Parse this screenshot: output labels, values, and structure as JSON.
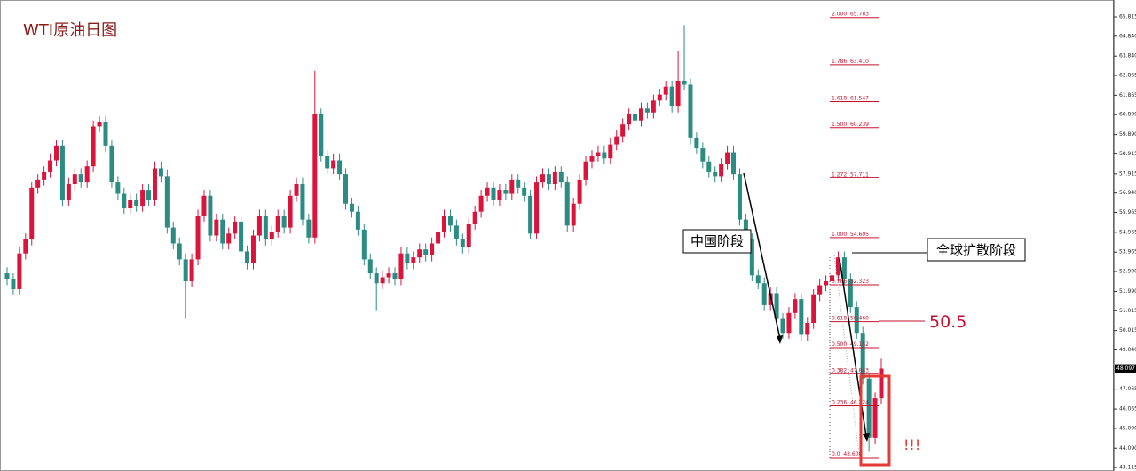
{
  "chart_data": {
    "type": "candlestick",
    "title": "WTI原油日图",
    "ylim": [
      42.94,
      66.664
    ],
    "yticks": [
      65.815,
      {
        "value": 64.84,
        "label": "64.840"
      },
      {
        "value": 63.84,
        "label": "63.840"
      },
      62.865,
      61.865,
      {
        "value": 60.89,
        "label": "60.890"
      },
      {
        "value": 59.89,
        "label": "59.890"
      },
      58.915,
      57.915,
      {
        "value": 56.94,
        "label": "56.940"
      },
      55.965,
      54.965,
      53.965,
      {
        "value": 52.99,
        "label": "52.990"
      },
      {
        "value": 51.99,
        "label": "51.990"
      },
      51.015,
      50.015,
      {
        "value": 49.04,
        "label": "49.040"
      },
      47.065,
      46.065,
      {
        "value": 45.09,
        "label": "45.090"
      },
      {
        "value": 44.09,
        "label": "44.090"
      },
      43.115
    ],
    "last_price": 48.097,
    "up_color": "#dc143c",
    "down_color": "#2a8c82",
    "open": [
      52.9,
      52.6,
      52.1,
      53.9,
      54.6,
      57.2,
      57.6,
      58.0,
      58.6,
      59.3,
      56.6,
      57.4,
      57.9,
      57.5,
      58.3,
      60.3,
      60.5,
      59.3,
      57.5,
      56.9,
      56.2,
      56.6,
      56.3,
      57.1,
      56.6,
      58.2,
      57.8,
      55.2,
      54.4,
      53.6,
      52.5,
      53.6,
      55.8,
      56.8,
      54.8,
      55.6,
      54.4,
      54.9,
      55.5,
      54.0,
      53.4,
      54.8,
      55.8,
      54.6,
      55.0,
      55.8,
      55.2,
      56.8,
      57.4,
      55.6,
      54.7,
      60.9,
      58.8,
      58.2,
      58.6,
      57.9,
      56.4,
      56.0,
      55.1,
      53.6,
      52.9,
      52.4,
      52.7,
      52.9,
      52.6,
      53.9,
      53.4,
      53.7,
      54.1,
      53.8,
      54.4,
      55.0,
      55.8,
      55.3,
      54.6,
      54.2,
      55.4,
      56.0,
      56.8,
      57.2,
      56.6,
      57.1,
      56.9,
      57.6,
      57.2,
      56.8,
      54.9,
      57.5,
      57.9,
      57.4,
      58.0,
      57.5,
      55.3,
      56.4,
      57.6,
      58.5,
      58.8,
      59.0,
      58.7,
      59.4,
      59.8,
      60.4,
      60.9,
      60.6,
      61.2,
      61.0,
      61.6,
      61.9,
      62.3,
      61.3,
      62.6,
      62.4,
      59.7,
      59.2,
      58.5,
      58.0,
      57.8,
      58.4,
      59.0,
      57.9,
      55.6,
      54.6,
      52.8,
      52.4,
      51.3,
      51.9,
      50.6,
      49.9,
      50.9,
      51.6,
      49.8,
      50.4,
      51.8,
      52.3,
      52.5,
      52.8,
      53.7,
      52.6,
      51.2,
      49.9,
      47.6,
      44.6,
      46.6
    ],
    "high": [
      53.2,
      52.9,
      54.2,
      54.9,
      57.5,
      57.9,
      58.3,
      58.9,
      59.6,
      59.6,
      57.7,
      58.2,
      58.2,
      58.6,
      60.6,
      60.8,
      60.8,
      59.6,
      57.8,
      57.2,
      56.9,
      56.9,
      57.4,
      57.4,
      58.5,
      58.5,
      58.1,
      55.5,
      54.7,
      53.9,
      53.9,
      56.1,
      57.1,
      57.1,
      55.9,
      55.9,
      55.2,
      55.8,
      55.8,
      54.3,
      55.1,
      56.1,
      56.1,
      55.3,
      56.1,
      56.1,
      57.1,
      57.7,
      57.7,
      55.9,
      63.1,
      61.2,
      59.1,
      58.9,
      58.9,
      58.2,
      56.7,
      56.3,
      55.4,
      53.9,
      53.2,
      53.0,
      53.2,
      53.2,
      54.2,
      54.2,
      54.0,
      54.4,
      54.4,
      54.7,
      55.3,
      56.1,
      56.1,
      55.6,
      54.9,
      55.7,
      56.3,
      57.1,
      57.5,
      57.5,
      57.4,
      57.4,
      57.9,
      57.9,
      57.5,
      57.1,
      57.8,
      58.2,
      58.2,
      58.3,
      58.3,
      57.8,
      56.7,
      57.9,
      58.8,
      59.1,
      59.3,
      59.3,
      59.7,
      60.1,
      60.7,
      61.2,
      61.2,
      61.5,
      61.5,
      61.9,
      62.2,
      62.6,
      62.6,
      64.1,
      65.4,
      62.7,
      60.0,
      59.5,
      58.8,
      58.3,
      58.7,
      59.3,
      59.3,
      58.2,
      55.9,
      54.9,
      53.1,
      52.7,
      52.2,
      52.2,
      50.9,
      51.2,
      51.9,
      51.9,
      50.7,
      52.1,
      52.6,
      52.8,
      53.1,
      54.0,
      54.0,
      52.9,
      51.5,
      50.2,
      47.9,
      46.9,
      48.6
    ],
    "low": [
      52.3,
      51.8,
      51.8,
      53.6,
      54.3,
      56.9,
      57.3,
      57.7,
      58.3,
      56.3,
      56.3,
      57.1,
      57.2,
      57.2,
      58.0,
      60.0,
      59.0,
      57.2,
      56.6,
      55.9,
      55.9,
      56.0,
      56.0,
      56.3,
      56.3,
      57.5,
      54.9,
      54.1,
      53.3,
      50.6,
      52.2,
      53.3,
      55.5,
      54.5,
      54.5,
      54.1,
      54.1,
      54.6,
      53.7,
      53.1,
      53.1,
      54.5,
      54.3,
      54.3,
      54.7,
      54.9,
      54.9,
      56.5,
      55.3,
      54.4,
      54.4,
      58.5,
      57.9,
      57.9,
      57.6,
      56.1,
      55.7,
      54.8,
      53.3,
      52.6,
      51.0,
      52.1,
      52.4,
      52.3,
      52.3,
      53.1,
      53.1,
      53.4,
      53.5,
      53.5,
      54.1,
      54.7,
      55.0,
      54.3,
      53.9,
      53.9,
      55.1,
      55.7,
      56.5,
      56.3,
      56.3,
      56.6,
      56.6,
      56.9,
      56.5,
      54.6,
      54.6,
      57.2,
      57.1,
      57.1,
      57.2,
      55.0,
      55.0,
      56.1,
      57.3,
      58.2,
      58.5,
      58.4,
      58.4,
      59.1,
      59.5,
      60.1,
      60.3,
      60.3,
      60.7,
      60.7,
      61.3,
      61.6,
      61.0,
      61.0,
      62.1,
      59.4,
      58.9,
      58.2,
      57.7,
      57.5,
      57.5,
      58.1,
      57.6,
      55.3,
      54.3,
      52.5,
      52.1,
      51.0,
      51.0,
      50.3,
      49.6,
      49.6,
      50.6,
      49.5,
      49.5,
      50.1,
      51.5,
      52.0,
      52.2,
      52.5,
      52.3,
      50.9,
      49.6,
      47.3,
      43.9,
      44.3,
      46.3
    ],
    "close": [
      52.6,
      52.1,
      53.9,
      54.6,
      57.2,
      57.6,
      58.0,
      58.6,
      59.3,
      56.6,
      57.4,
      57.9,
      57.5,
      58.3,
      60.3,
      60.5,
      59.3,
      57.5,
      56.9,
      56.2,
      56.6,
      56.3,
      57.1,
      56.6,
      58.2,
      57.8,
      55.2,
      54.4,
      53.6,
      52.5,
      53.6,
      55.8,
      56.8,
      54.8,
      55.6,
      54.4,
      54.9,
      55.5,
      54.0,
      53.4,
      54.8,
      55.8,
      54.6,
      55.0,
      55.8,
      55.2,
      56.8,
      57.4,
      55.6,
      54.7,
      60.9,
      58.8,
      58.2,
      58.6,
      57.9,
      56.4,
      56.0,
      55.1,
      53.6,
      52.9,
      52.4,
      52.7,
      52.9,
      52.6,
      53.9,
      53.4,
      53.7,
      54.1,
      53.8,
      54.4,
      55.0,
      55.8,
      55.3,
      54.6,
      54.2,
      55.4,
      56.0,
      56.8,
      57.2,
      56.6,
      57.1,
      56.9,
      57.6,
      57.2,
      56.8,
      54.9,
      57.5,
      57.9,
      57.4,
      58.0,
      57.5,
      55.3,
      56.4,
      57.6,
      58.5,
      58.8,
      59.0,
      58.7,
      59.4,
      59.8,
      60.4,
      60.9,
      60.6,
      61.2,
      61.0,
      61.6,
      61.9,
      62.3,
      61.3,
      62.6,
      62.4,
      59.7,
      59.2,
      58.5,
      58.0,
      57.8,
      58.4,
      59.0,
      57.9,
      55.6,
      54.6,
      52.8,
      52.4,
      51.3,
      51.9,
      50.6,
      49.9,
      50.9,
      51.6,
      49.8,
      50.4,
      51.8,
      52.3,
      52.5,
      52.8,
      53.7,
      52.6,
      51.2,
      49.9,
      47.6,
      44.6,
      46.6,
      48.1
    ],
    "fib_levels": [
      {
        "value": 65.783,
        "label": "2.000  65.783"
      },
      {
        "value": 63.41,
        "label": "1.786  63.410"
      },
      {
        "value": 61.547,
        "label": "1.618  61.547"
      },
      {
        "value": 60.239,
        "label": "1.500  60.239"
      },
      {
        "value": 57.711,
        "label": "1.272  57.711"
      },
      {
        "value": 54.695,
        "label": "1.000  54.695"
      },
      {
        "value": 52.323,
        "label": "0.786  52.323"
      },
      {
        "value": 50.46,
        "label": "0.618  50.460"
      },
      {
        "value": 49.152,
        "label": "0.500  49.152"
      },
      {
        "value": 47.843,
        "label": "0.382  47.843"
      },
      {
        "value": 46.224,
        "label": "0.236  46.224"
      },
      {
        "value": 43.608,
        "label": "0.0  43.608"
      }
    ],
    "fib_color": "#c8102e",
    "annotations": {
      "china_phase": "中国阶段",
      "global_phase": "全球扩散阶段",
      "key_level": "50.5",
      "alert": "!!!"
    }
  }
}
